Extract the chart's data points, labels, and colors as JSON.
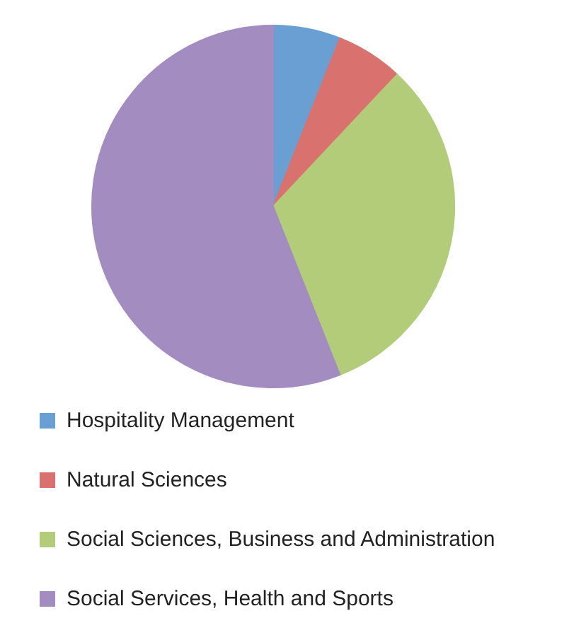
{
  "chart_data": {
    "type": "pie",
    "categories": [
      "Hospitality Management",
      "Natural Sciences",
      "Social Sciences, Business and Administration",
      "Social Services, Health and Sports"
    ],
    "values": [
      6,
      6,
      32,
      56
    ],
    "colors": [
      "#6a9fd4",
      "#d9726e",
      "#b3cc7a",
      "#a38cbf"
    ],
    "legend": "bottom"
  }
}
